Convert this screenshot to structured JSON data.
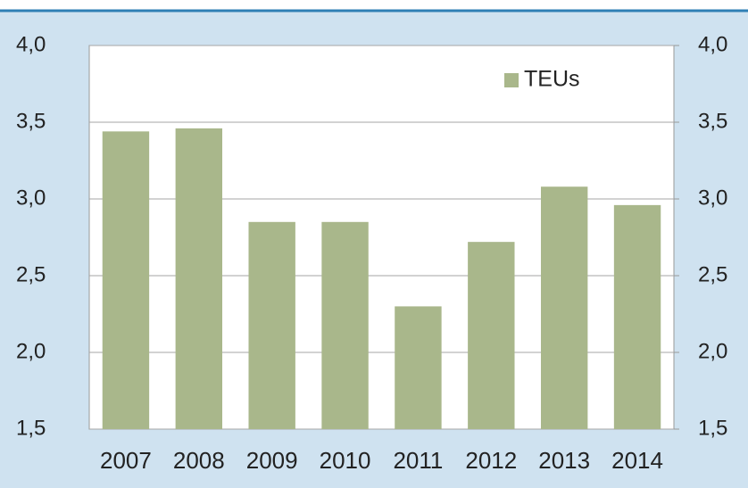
{
  "chart_data": {
    "type": "bar",
    "categories": [
      "2007",
      "2008",
      "2009",
      "2010",
      "2011",
      "2012",
      "2013",
      "2014"
    ],
    "series": [
      {
        "name": "TEUs",
        "color": "#a9b78b",
        "values": [
          3.44,
          3.46,
          2.85,
          2.85,
          2.3,
          2.72,
          3.08,
          2.96
        ]
      }
    ],
    "ylim": [
      1.5,
      4.0
    ],
    "yticks": [
      {
        "value": 1.5,
        "label": "1,5"
      },
      {
        "value": 2.0,
        "label": "2,0"
      },
      {
        "value": 2.5,
        "label": "2,5"
      },
      {
        "value": 3.0,
        "label": "3,0"
      },
      {
        "value": 3.5,
        "label": "3,5"
      },
      {
        "value": 4.0,
        "label": "4,0"
      }
    ],
    "y2lim": [
      1.5,
      4.0
    ],
    "y2ticks": [
      {
        "value": 1.5,
        "label": "1,5"
      },
      {
        "value": 2.0,
        "label": "2,0"
      },
      {
        "value": 2.5,
        "label": "2,5"
      },
      {
        "value": 3.0,
        "label": "3,0"
      },
      {
        "value": 3.5,
        "label": "3,5"
      },
      {
        "value": 4.0,
        "label": "4,0"
      }
    ],
    "grid": true,
    "legend": "top-right"
  }
}
